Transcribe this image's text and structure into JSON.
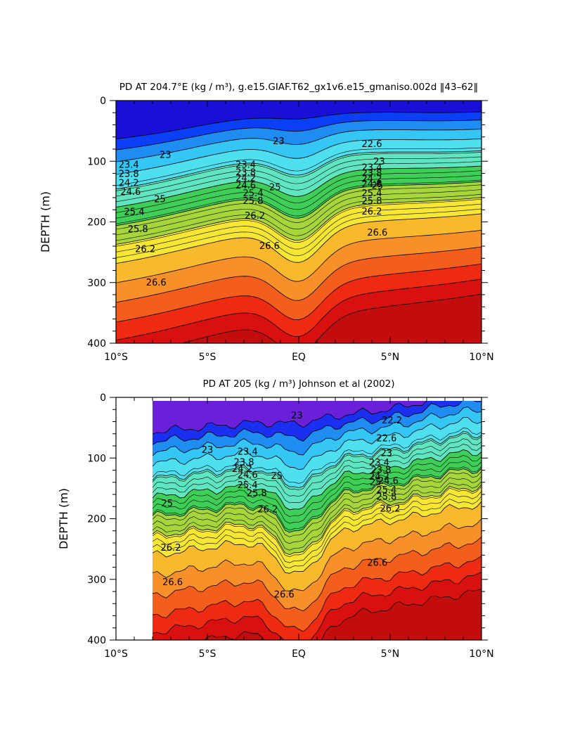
{
  "chart_data": [
    {
      "type": "heatmap",
      "title": "PD AT 204.7°E (kg / m³), g.e15.GIAF.T62_gx1v6.e15_gmaniso.002d ‖43–62‖",
      "xlabel": "",
      "ylabel": "DEPTH (m)",
      "xlim": [
        -10,
        10
      ],
      "ylim": [
        400,
        0
      ],
      "y_inverted": true,
      "x_ticks": [
        -10,
        -5,
        0,
        5,
        10
      ],
      "x_tick_labels": [
        "10°S",
        "5°S",
        "EQ",
        "5°N",
        "10°N"
      ],
      "y_ticks": [
        0,
        100,
        200,
        300,
        400
      ],
      "y_tick_labels": [
        "0",
        "100",
        "200",
        "300",
        "400"
      ],
      "data_extent_x": [
        -10,
        10
      ],
      "contour_interval": 0.2,
      "colormap": [
        "#1a0fd6",
        "#0a3ff5",
        "#1e8cf0",
        "#34c6f5",
        "#4fe0f0",
        "#5fe6c0",
        "#3fcf58",
        "#a7d63a",
        "#f7e733",
        "#f8b92d",
        "#f8902a",
        "#f35e1d",
        "#ee2a12",
        "#d91010",
        "#c30d0d"
      ],
      "contour_labels": [
        {
          "text": "23",
          "x": -7.3,
          "y": 90
        },
        {
          "text": "23.4",
          "x": -9.3,
          "y": 106
        },
        {
          "text": "23.8",
          "x": -9.3,
          "y": 121
        },
        {
          "text": "24.2",
          "x": -9.3,
          "y": 136
        },
        {
          "text": "24.6",
          "x": -9.2,
          "y": 151
        },
        {
          "text": "25",
          "x": -7.6,
          "y": 163
        },
        {
          "text": "25.4",
          "x": -9.0,
          "y": 184
        },
        {
          "text": "25.8",
          "x": -8.8,
          "y": 212
        },
        {
          "text": "26.2",
          "x": -8.4,
          "y": 245
        },
        {
          "text": "26.6",
          "x": -7.8,
          "y": 300
        },
        {
          "text": "23",
          "x": -1.1,
          "y": 67
        },
        {
          "text": "23.4",
          "x": -2.9,
          "y": 106
        },
        {
          "text": "23.8",
          "x": -2.9,
          "y": 119
        },
        {
          "text": "24.2",
          "x": -2.9,
          "y": 128
        },
        {
          "text": "24.6",
          "x": -2.9,
          "y": 140
        },
        {
          "text": "25",
          "x": -1.3,
          "y": 143
        },
        {
          "text": "25.4",
          "x": -2.5,
          "y": 153
        },
        {
          "text": "25.8",
          "x": -2.5,
          "y": 166
        },
        {
          "text": "26.2",
          "x": -2.4,
          "y": 190
        },
        {
          "text": "26.6",
          "x": -1.6,
          "y": 240
        },
        {
          "text": "22.6",
          "x": 4.0,
          "y": 72
        },
        {
          "text": "23",
          "x": 4.4,
          "y": 101
        },
        {
          "text": "23.4",
          "x": 4.0,
          "y": 111
        },
        {
          "text": "23.8",
          "x": 4.0,
          "y": 120
        },
        {
          "text": "24.2",
          "x": 4.0,
          "y": 129
        },
        {
          "text": "24.6",
          "x": 4.0,
          "y": 138
        },
        {
          "text": "25",
          "x": 4.3,
          "y": 141
        },
        {
          "text": "25.4",
          "x": 4.0,
          "y": 153
        },
        {
          "text": "25.8",
          "x": 4.0,
          "y": 166
        },
        {
          "text": "26.2",
          "x": 4.0,
          "y": 183
        },
        {
          "text": "26.6",
          "x": 4.3,
          "y": 218
        }
      ]
    },
    {
      "type": "heatmap",
      "title": "PD AT 205 (kg / m³) Johnson et al (2002)",
      "xlabel": "",
      "ylabel": "DEPTH (m)",
      "xlim": [
        -10,
        10
      ],
      "ylim": [
        400,
        0
      ],
      "y_inverted": true,
      "x_ticks": [
        -10,
        -5,
        0,
        5,
        10
      ],
      "x_tick_labels": [
        "10°S",
        "5°S",
        "EQ",
        "5°N",
        "10°N"
      ],
      "y_ticks": [
        0,
        100,
        200,
        300,
        400
      ],
      "y_tick_labels": [
        "0",
        "100",
        "200",
        "300",
        "400"
      ],
      "data_extent_x": [
        -8,
        10
      ],
      "contour_interval": 0.2,
      "colormap": [
        "#6a1fd8",
        "#1a2ff0",
        "#1e8cf0",
        "#34c6f5",
        "#4fe0f0",
        "#5fe6c0",
        "#3fcf58",
        "#a7d63a",
        "#f7e733",
        "#f8b92d",
        "#f8902a",
        "#f35e1d",
        "#ee2a12",
        "#d91010",
        "#c30d0d"
      ],
      "contour_labels": [
        {
          "text": "23",
          "x": -5.0,
          "y": 87
        },
        {
          "text": "25",
          "x": -7.2,
          "y": 175
        },
        {
          "text": "26.2",
          "x": -7.0,
          "y": 248
        },
        {
          "text": "26.6",
          "x": -6.9,
          "y": 305
        },
        {
          "text": "23",
          "x": -0.1,
          "y": 30
        },
        {
          "text": "23.4",
          "x": -2.8,
          "y": 90
        },
        {
          "text": "23.8",
          "x": -3.0,
          "y": 107
        },
        {
          "text": "24.2",
          "x": -3.1,
          "y": 118
        },
        {
          "text": "24.6",
          "x": -2.8,
          "y": 128
        },
        {
          "text": "25",
          "x": -1.2,
          "y": 130
        },
        {
          "text": "25.4",
          "x": -2.8,
          "y": 145
        },
        {
          "text": "25.8",
          "x": -2.3,
          "y": 158
        },
        {
          "text": "26.2",
          "x": -1.7,
          "y": 185
        },
        {
          "text": "26.6",
          "x": -0.8,
          "y": 325
        },
        {
          "text": "22.2",
          "x": 5.1,
          "y": 38
        },
        {
          "text": "22.6",
          "x": 4.8,
          "y": 68
        },
        {
          "text": "23",
          "x": 4.8,
          "y": 92
        },
        {
          "text": "23.4",
          "x": 4.4,
          "y": 108
        },
        {
          "text": "23.8",
          "x": 4.5,
          "y": 120
        },
        {
          "text": "24.2",
          "x": 4.4,
          "y": 131
        },
        {
          "text": "24.6",
          "x": 4.9,
          "y": 138
        },
        {
          "text": "25",
          "x": 4.2,
          "y": 140
        },
        {
          "text": "25.4",
          "x": 4.8,
          "y": 153
        },
        {
          "text": "25.8",
          "x": 4.8,
          "y": 164
        },
        {
          "text": "26.2",
          "x": 5.0,
          "y": 184
        },
        {
          "text": "26.6",
          "x": 4.3,
          "y": 273
        }
      ]
    }
  ]
}
